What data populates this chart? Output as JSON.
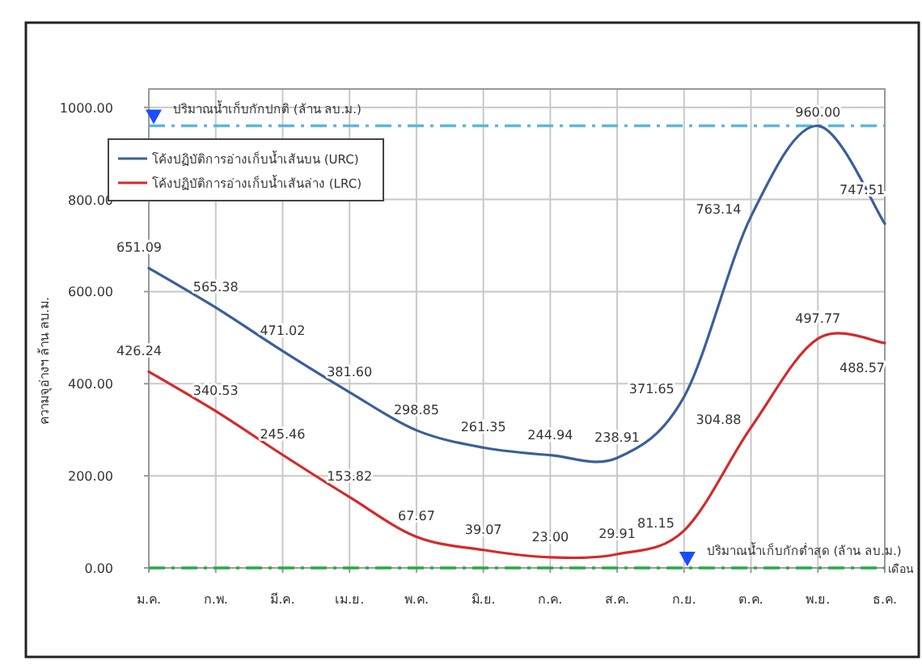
{
  "chart_data": {
    "type": "line",
    "xlabel": "เดือน",
    "ylabel": "ความจุอ่างฯ ล้าน ลบ.ม.",
    "categories": [
      "ม.ค.",
      "ก.พ.",
      "มี.ค.",
      "เม.ย.",
      "พ.ค.",
      "มิ.ย.",
      "ก.ค.",
      "ส.ค.",
      "ก.ย.",
      "ต.ค.",
      "พ.ย.",
      "ธ.ค."
    ],
    "series": [
      {
        "name": "โค้งปฏิบัติการอ่างเก็บน้ำเส้นบน (URC)",
        "color": "#3a5f9a",
        "values": [
          651.09,
          565.38,
          471.02,
          381.6,
          298.85,
          261.35,
          244.94,
          238.91,
          371.65,
          763.14,
          960,
          747.51
        ],
        "value_labels": [
          "651.09",
          "565.38",
          "471.02",
          "381.60",
          "298.85",
          "261.35",
          "244.94",
          "238.91",
          "371.65",
          "763.14",
          "960.00",
          "747.51"
        ]
      },
      {
        "name": "โค้งปฏิบัติการอ่างเก็บน้ำเส้นล่าง (LRC)",
        "color": "#d42a2a",
        "values": [
          426.24,
          340.53,
          245.46,
          153.82,
          67.67,
          39.07,
          23,
          29.91,
          81.15,
          304.88,
          497.77,
          488.57
        ],
        "value_labels": [
          "426.24",
          "340.53",
          "245.46",
          "153.82",
          "67.67",
          "39.07",
          "23.00",
          "29.91",
          "81.15",
          "304.88",
          "497.77",
          "488.57"
        ]
      }
    ],
    "ylim": [
      0,
      1040
    ],
    "yticks": [
      {
        "value": 0,
        "label": "0.00"
      },
      {
        "value": 200,
        "label": "200.00"
      },
      {
        "value": 400,
        "label": "400.00"
      },
      {
        "value": 600,
        "label": "600.00"
      },
      {
        "value": 800,
        "label": "800.00"
      },
      {
        "value": 1000,
        "label": "1000.00"
      }
    ],
    "ref_lines": [
      {
        "axis": "y",
        "value": 960,
        "label": "ปริมาณน้ำเก็บกักปกติ (ล้าน ลบ.ม.)",
        "color": "#5bb8d6",
        "line_style": "dashdot"
      },
      {
        "axis": "y",
        "value": 0,
        "label": "ปริมาณน้ำเก็บกักต่ำสุด (ล้าน ลบ.ม.)",
        "color": "#2aa84a",
        "line_style": "dashdot"
      }
    ],
    "grid": true,
    "legend": "top left",
    "marker": "none",
    "line_style": "solid"
  }
}
